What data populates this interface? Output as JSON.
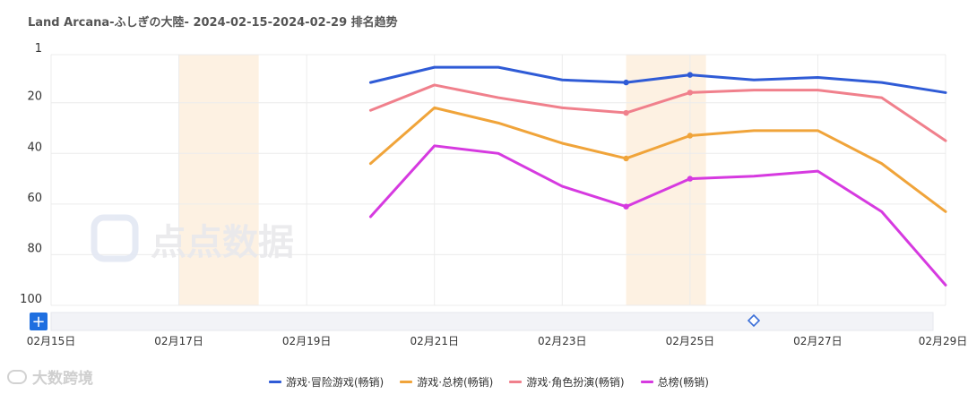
{
  "chart_data": {
    "type": "line",
    "title": "Land Arcana-ふしぎの大陸- 2024-02-15-2024-02-29 排名趋势",
    "xlabel": "",
    "ylabel": "",
    "y_inverted": true,
    "ylim": [
      1,
      100
    ],
    "yticks": [
      1,
      20,
      40,
      60,
      80,
      100
    ],
    "x": [
      "02-15",
      "02-16",
      "02-17",
      "02-18",
      "02-19",
      "02-20",
      "02-21",
      "02-22",
      "02-23",
      "02-24",
      "02-25",
      "02-26",
      "02-27",
      "02-28",
      "02-29"
    ],
    "xtick_labels": [
      "02月15日",
      "02月17日",
      "02月19日",
      "02月21日",
      "02月23日",
      "02月25日",
      "02月27日",
      "02月29日"
    ],
    "xtick_dates": [
      "02-15",
      "02-17",
      "02-19",
      "02-21",
      "02-23",
      "02-25",
      "02-27",
      "02-29"
    ],
    "highlight_ranges": [
      [
        "02-17",
        "02-18"
      ],
      [
        "02-24",
        "02-25"
      ]
    ],
    "series": [
      {
        "name": "游戏·冒险游戏(畅销)",
        "color": "#2f5bd6",
        "values": [
          null,
          null,
          null,
          null,
          null,
          12,
          6,
          6,
          11,
          12,
          9,
          11,
          10,
          12,
          16
        ],
        "markers": [
          9,
          10
        ]
      },
      {
        "name": "游戏·总榜(畅销)",
        "color": "#f0a43a",
        "values": [
          null,
          null,
          null,
          null,
          null,
          44,
          22,
          28,
          36,
          42,
          33,
          31,
          31,
          44,
          63
        ],
        "markers": [
          9,
          10
        ]
      },
      {
        "name": "游戏·角色扮演(畅销)",
        "color": "#f0808c",
        "values": [
          null,
          null,
          null,
          null,
          null,
          23,
          13,
          18,
          22,
          24,
          16,
          15,
          15,
          18,
          35
        ],
        "markers": [
          9,
          10
        ]
      },
      {
        "name": "总榜(畅销)",
        "color": "#d63ae0",
        "values": [
          null,
          null,
          null,
          null,
          null,
          65,
          37,
          40,
          53,
          61,
          50,
          49,
          47,
          63,
          92
        ],
        "markers": [
          9,
          10
        ]
      }
    ],
    "grid": true,
    "legend": "bottom-center"
  },
  "watermark": {
    "text": "点点数据"
  },
  "corner_logo": {
    "text": "大数跨境"
  },
  "zoom": {
    "add_label": "+"
  }
}
